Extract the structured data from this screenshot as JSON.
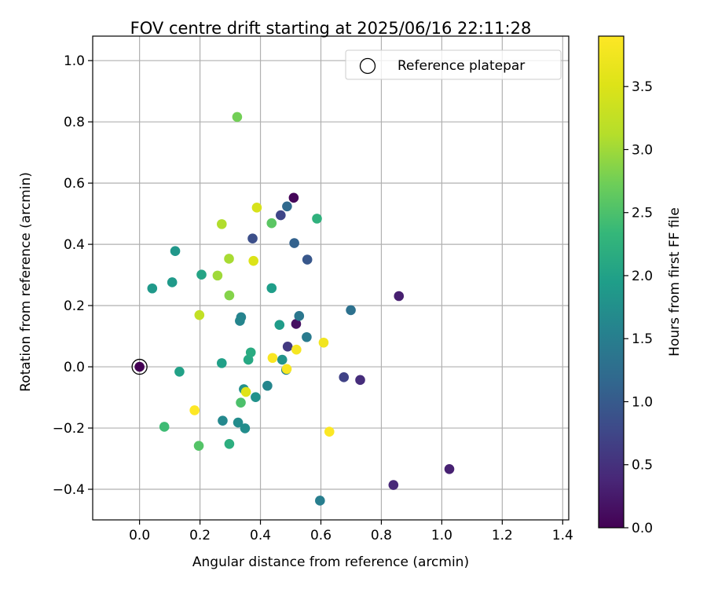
{
  "chart_data": {
    "type": "scatter",
    "title": "FOV centre drift starting at 2025/06/16 22:11:28",
    "xlabel": "Angular distance from reference (arcmin)",
    "ylabel": "Rotation from reference (arcmin)",
    "xlim": [
      -0.155,
      1.42
    ],
    "ylim": [
      -0.5,
      1.08
    ],
    "xticks": [
      0.0,
      0.2,
      0.4,
      0.6,
      0.8,
      1.0,
      1.2,
      1.4
    ],
    "xtick_labels": [
      "0.0",
      "0.2",
      "0.4",
      "0.6",
      "0.8",
      "1.0",
      "1.2",
      "1.4"
    ],
    "yticks": [
      -0.4,
      -0.2,
      0.0,
      0.2,
      0.4,
      0.6,
      0.8,
      1.0
    ],
    "ytick_labels": [
      "−0.4",
      "−0.2",
      "0.0",
      "0.2",
      "0.4",
      "0.6",
      "0.8",
      "1.0"
    ],
    "grid": true,
    "colormap": "viridis",
    "colorbar": {
      "label": "Hours from first FF file",
      "range": [
        0,
        3.9
      ],
      "ticks": [
        0.0,
        0.5,
        1.0,
        1.5,
        2.0,
        2.5,
        3.0,
        3.5
      ],
      "tick_labels": [
        "0.0",
        "0.5",
        "1.0",
        "1.5",
        "2.0",
        "2.5",
        "3.0",
        "3.5"
      ]
    },
    "legend": {
      "position": "upper right",
      "entries": [
        {
          "label": "Reference platepar",
          "marker": "hollow-circle",
          "color": "#000000"
        }
      ]
    },
    "reference_point": {
      "x": 0.0,
      "y": 0.0,
      "hours": 0.0
    },
    "points": [
      {
        "x": 0.51,
        "y": 0.552,
        "hours": 0.05
      },
      {
        "x": 0.518,
        "y": 0.14,
        "hours": 0.15
      },
      {
        "x": 0.858,
        "y": 0.231,
        "hours": 0.3
      },
      {
        "x": 1.025,
        "y": -0.334,
        "hours": 0.32
      },
      {
        "x": 0.84,
        "y": -0.386,
        "hours": 0.4
      },
      {
        "x": 0.73,
        "y": -0.043,
        "hours": 0.45
      },
      {
        "x": 0.49,
        "y": 0.066,
        "hours": 0.6
      },
      {
        "x": 0.676,
        "y": -0.034,
        "hours": 0.7
      },
      {
        "x": 0.467,
        "y": 0.495,
        "hours": 0.75
      },
      {
        "x": 0.374,
        "y": 0.419,
        "hours": 0.85
      },
      {
        "x": 0.555,
        "y": 0.35,
        "hours": 0.95
      },
      {
        "x": 0.512,
        "y": 0.404,
        "hours": 1.1
      },
      {
        "x": 0.488,
        "y": 0.524,
        "hours": 1.2
      },
      {
        "x": 0.699,
        "y": 0.185,
        "hours": 1.3
      },
      {
        "x": 0.528,
        "y": 0.166,
        "hours": 1.4
      },
      {
        "x": 0.553,
        "y": 0.097,
        "hours": 1.45
      },
      {
        "x": 0.597,
        "y": -0.437,
        "hours": 1.5
      },
      {
        "x": 0.485,
        "y": -0.01,
        "hours": 1.55
      },
      {
        "x": 0.336,
        "y": 0.162,
        "hours": 1.58
      },
      {
        "x": 0.332,
        "y": 0.15,
        "hours": 1.6
      },
      {
        "x": 0.423,
        "y": -0.062,
        "hours": 1.62
      },
      {
        "x": 0.275,
        "y": -0.176,
        "hours": 1.65
      },
      {
        "x": 0.326,
        "y": -0.182,
        "hours": 1.7
      },
      {
        "x": 0.349,
        "y": -0.201,
        "hours": 1.72
      },
      {
        "x": 0.345,
        "y": -0.073,
        "hours": 1.75
      },
      {
        "x": 0.384,
        "y": -0.099,
        "hours": 1.78
      },
      {
        "x": 0.472,
        "y": 0.023,
        "hours": 1.8
      },
      {
        "x": 0.118,
        "y": 0.378,
        "hours": 1.85
      },
      {
        "x": 0.042,
        "y": 0.256,
        "hours": 1.88
      },
      {
        "x": 0.108,
        "y": 0.276,
        "hours": 1.9
      },
      {
        "x": 0.463,
        "y": 0.137,
        "hours": 1.92
      },
      {
        "x": 0.437,
        "y": 0.257,
        "hours": 1.95
      },
      {
        "x": 0.272,
        "y": 0.012,
        "hours": 1.98
      },
      {
        "x": 0.132,
        "y": -0.016,
        "hours": 2.0
      },
      {
        "x": 0.205,
        "y": 0.301,
        "hours": 2.05
      },
      {
        "x": 0.36,
        "y": 0.023,
        "hours": 2.1
      },
      {
        "x": 0.368,
        "y": 0.047,
        "hours": 2.15
      },
      {
        "x": 0.297,
        "y": -0.252,
        "hours": 2.2
      },
      {
        "x": 0.587,
        "y": 0.484,
        "hours": 2.25
      },
      {
        "x": 0.082,
        "y": -0.196,
        "hours": 2.4
      },
      {
        "x": 0.335,
        "y": -0.117,
        "hours": 2.5
      },
      {
        "x": 0.196,
        "y": -0.258,
        "hours": 2.55
      },
      {
        "x": 0.437,
        "y": 0.469,
        "hours": 2.6
      },
      {
        "x": 0.323,
        "y": 0.816,
        "hours": 2.75
      },
      {
        "x": 0.297,
        "y": 0.233,
        "hours": 2.85
      },
      {
        "x": 0.258,
        "y": 0.298,
        "hours": 3.0
      },
      {
        "x": 0.296,
        "y": 0.353,
        "hours": 3.05
      },
      {
        "x": 0.272,
        "y": 0.466,
        "hours": 3.1
      },
      {
        "x": 0.198,
        "y": 0.169,
        "hours": 3.25
      },
      {
        "x": 0.388,
        "y": 0.52,
        "hours": 3.45
      },
      {
        "x": 0.377,
        "y": 0.346,
        "hours": 3.5
      },
      {
        "x": 0.352,
        "y": -0.082,
        "hours": 3.55
      },
      {
        "x": 0.609,
        "y": 0.079,
        "hours": 3.75
      },
      {
        "x": 0.519,
        "y": 0.056,
        "hours": 3.8
      },
      {
        "x": 0.487,
        "y": -0.007,
        "hours": 3.82
      },
      {
        "x": 0.44,
        "y": 0.029,
        "hours": 3.85
      },
      {
        "x": 0.628,
        "y": -0.212,
        "hours": 3.88
      },
      {
        "x": 0.182,
        "y": -0.142,
        "hours": 3.9
      }
    ]
  }
}
